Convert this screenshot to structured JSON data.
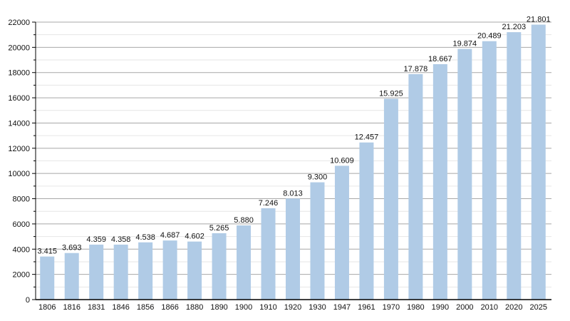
{
  "chart_data": {
    "type": "bar",
    "title": "",
    "xlabel": "",
    "ylabel": "",
    "categories": [
      "1806",
      "1816",
      "1831",
      "1846",
      "1856",
      "1866",
      "1880",
      "1890",
      "1900",
      "1910",
      "1920",
      "1930",
      "1947",
      "1961",
      "1970",
      "1980",
      "1990",
      "2000",
      "2010",
      "2020",
      "2025"
    ],
    "values": [
      3415,
      3693,
      4359,
      4358,
      4538,
      4687,
      4602,
      5265,
      5880,
      7246,
      8013,
      9300,
      10609,
      12457,
      15925,
      17878,
      18667,
      19874,
      20489,
      21203,
      21801
    ],
    "data_labels": [
      "3.415",
      "3.693",
      "4.359",
      "4.358",
      "4.538",
      "4.687",
      "4.602",
      "5.265",
      "5.880",
      "7.246",
      "8.013",
      "9.300",
      "10.609",
      "12.457",
      "15.925",
      "17.878",
      "18.667",
      "19.874",
      "20.489",
      "21.203",
      "21.801"
    ],
    "ylim": [
      0,
      22000
    ],
    "yticks": [
      0,
      2000,
      4000,
      6000,
      8000,
      10000,
      12000,
      14000,
      16000,
      18000,
      20000,
      22000
    ],
    "grid": true,
    "legend": "none",
    "colors": {
      "bar": "#b0cbe6",
      "grid_major": "#a8a8a8",
      "grid_minor": "#e6e6e6",
      "axis": "#000000"
    }
  }
}
